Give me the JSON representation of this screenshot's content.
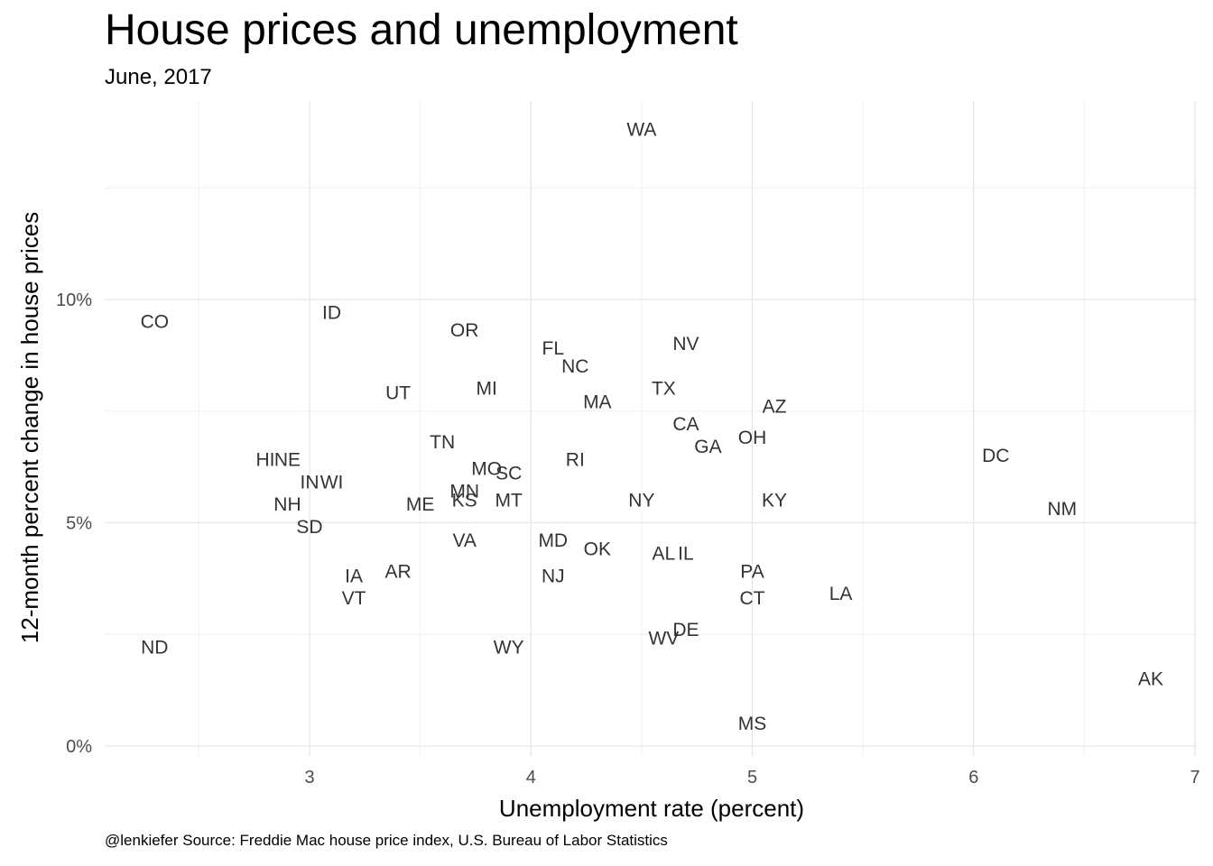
{
  "header": {
    "title": "House prices and unemployment",
    "subtitle": "June, 2017"
  },
  "footer": {
    "caption": "@lenkiefer Source: Freddie Mac house price index, U.S. Bureau of Labor Statistics"
  },
  "chart_data": {
    "type": "scatter",
    "title": "House prices and unemployment",
    "subtitle": "June, 2017",
    "xlabel": "Unemployment rate (percent)",
    "ylabel": "12-month percent change in house prices",
    "xlim": [
      2.1,
      7.05
    ],
    "ylim": [
      -0.2,
      14.4
    ],
    "x_ticks": [
      3,
      4,
      5,
      6,
      7
    ],
    "x_tick_labels": [
      "3",
      "4",
      "5",
      "6",
      "7"
    ],
    "y_ticks": [
      0,
      5,
      10
    ],
    "y_tick_labels": [
      "0%",
      "5%",
      "10%"
    ],
    "grid": true,
    "label_color": "#333333",
    "points": [
      {
        "label": "WA",
        "x": 4.5,
        "y": 13.8
      },
      {
        "label": "CO",
        "x": 2.3,
        "y": 9.5
      },
      {
        "label": "ID",
        "x": 3.1,
        "y": 9.7
      },
      {
        "label": "OR",
        "x": 3.7,
        "y": 9.3
      },
      {
        "label": "NV",
        "x": 4.7,
        "y": 9.0
      },
      {
        "label": "FL",
        "x": 4.1,
        "y": 8.9
      },
      {
        "label": "NC",
        "x": 4.2,
        "y": 8.5
      },
      {
        "label": "UT",
        "x": 3.4,
        "y": 7.9
      },
      {
        "label": "MI",
        "x": 3.8,
        "y": 8.0
      },
      {
        "label": "TX",
        "x": 4.6,
        "y": 8.0
      },
      {
        "label": "MA",
        "x": 4.3,
        "y": 7.7
      },
      {
        "label": "AZ",
        "x": 5.1,
        "y": 7.6
      },
      {
        "label": "CA",
        "x": 4.7,
        "y": 7.2
      },
      {
        "label": "OH",
        "x": 5.0,
        "y": 6.9
      },
      {
        "label": "GA",
        "x": 4.8,
        "y": 6.7
      },
      {
        "label": "TN",
        "x": 3.6,
        "y": 6.8
      },
      {
        "label": "DC",
        "x": 6.1,
        "y": 6.5
      },
      {
        "label": "HI",
        "x": 2.8,
        "y": 6.4
      },
      {
        "label": "NE",
        "x": 2.9,
        "y": 6.4
      },
      {
        "label": "RI",
        "x": 4.2,
        "y": 6.4
      },
      {
        "label": "MO",
        "x": 3.8,
        "y": 6.2
      },
      {
        "label": "SC",
        "x": 3.9,
        "y": 6.1
      },
      {
        "label": "IN",
        "x": 3.0,
        "y": 5.9
      },
      {
        "label": "WI",
        "x": 3.1,
        "y": 5.9
      },
      {
        "label": "MN",
        "x": 3.7,
        "y": 5.7
      },
      {
        "label": "KS",
        "x": 3.7,
        "y": 5.5
      },
      {
        "label": "MT",
        "x": 3.9,
        "y": 5.5
      },
      {
        "label": "NY",
        "x": 4.5,
        "y": 5.5
      },
      {
        "label": "KY",
        "x": 5.1,
        "y": 5.5
      },
      {
        "label": "ME",
        "x": 3.5,
        "y": 5.4
      },
      {
        "label": "NH",
        "x": 2.9,
        "y": 5.4
      },
      {
        "label": "NM",
        "x": 6.4,
        "y": 5.3
      },
      {
        "label": "SD",
        "x": 3.0,
        "y": 4.9
      },
      {
        "label": "VA",
        "x": 3.7,
        "y": 4.6
      },
      {
        "label": "MD",
        "x": 4.1,
        "y": 4.6
      },
      {
        "label": "OK",
        "x": 4.3,
        "y": 4.4
      },
      {
        "label": "AL",
        "x": 4.6,
        "y": 4.3
      },
      {
        "label": "IL",
        "x": 4.7,
        "y": 4.3
      },
      {
        "label": "IA",
        "x": 3.2,
        "y": 3.8
      },
      {
        "label": "AR",
        "x": 3.4,
        "y": 3.9
      },
      {
        "label": "NJ",
        "x": 4.1,
        "y": 3.8
      },
      {
        "label": "PA",
        "x": 5.0,
        "y": 3.9
      },
      {
        "label": "VT",
        "x": 3.2,
        "y": 3.3
      },
      {
        "label": "CT",
        "x": 5.0,
        "y": 3.3
      },
      {
        "label": "LA",
        "x": 5.4,
        "y": 3.4
      },
      {
        "label": "DE",
        "x": 4.7,
        "y": 2.6
      },
      {
        "label": "WV",
        "x": 4.6,
        "y": 2.4
      },
      {
        "label": "ND",
        "x": 2.3,
        "y": 2.2
      },
      {
        "label": "WY",
        "x": 3.9,
        "y": 2.2
      },
      {
        "label": "AK",
        "x": 6.8,
        "y": 1.5
      },
      {
        "label": "MS",
        "x": 5.0,
        "y": 0.5
      }
    ]
  }
}
